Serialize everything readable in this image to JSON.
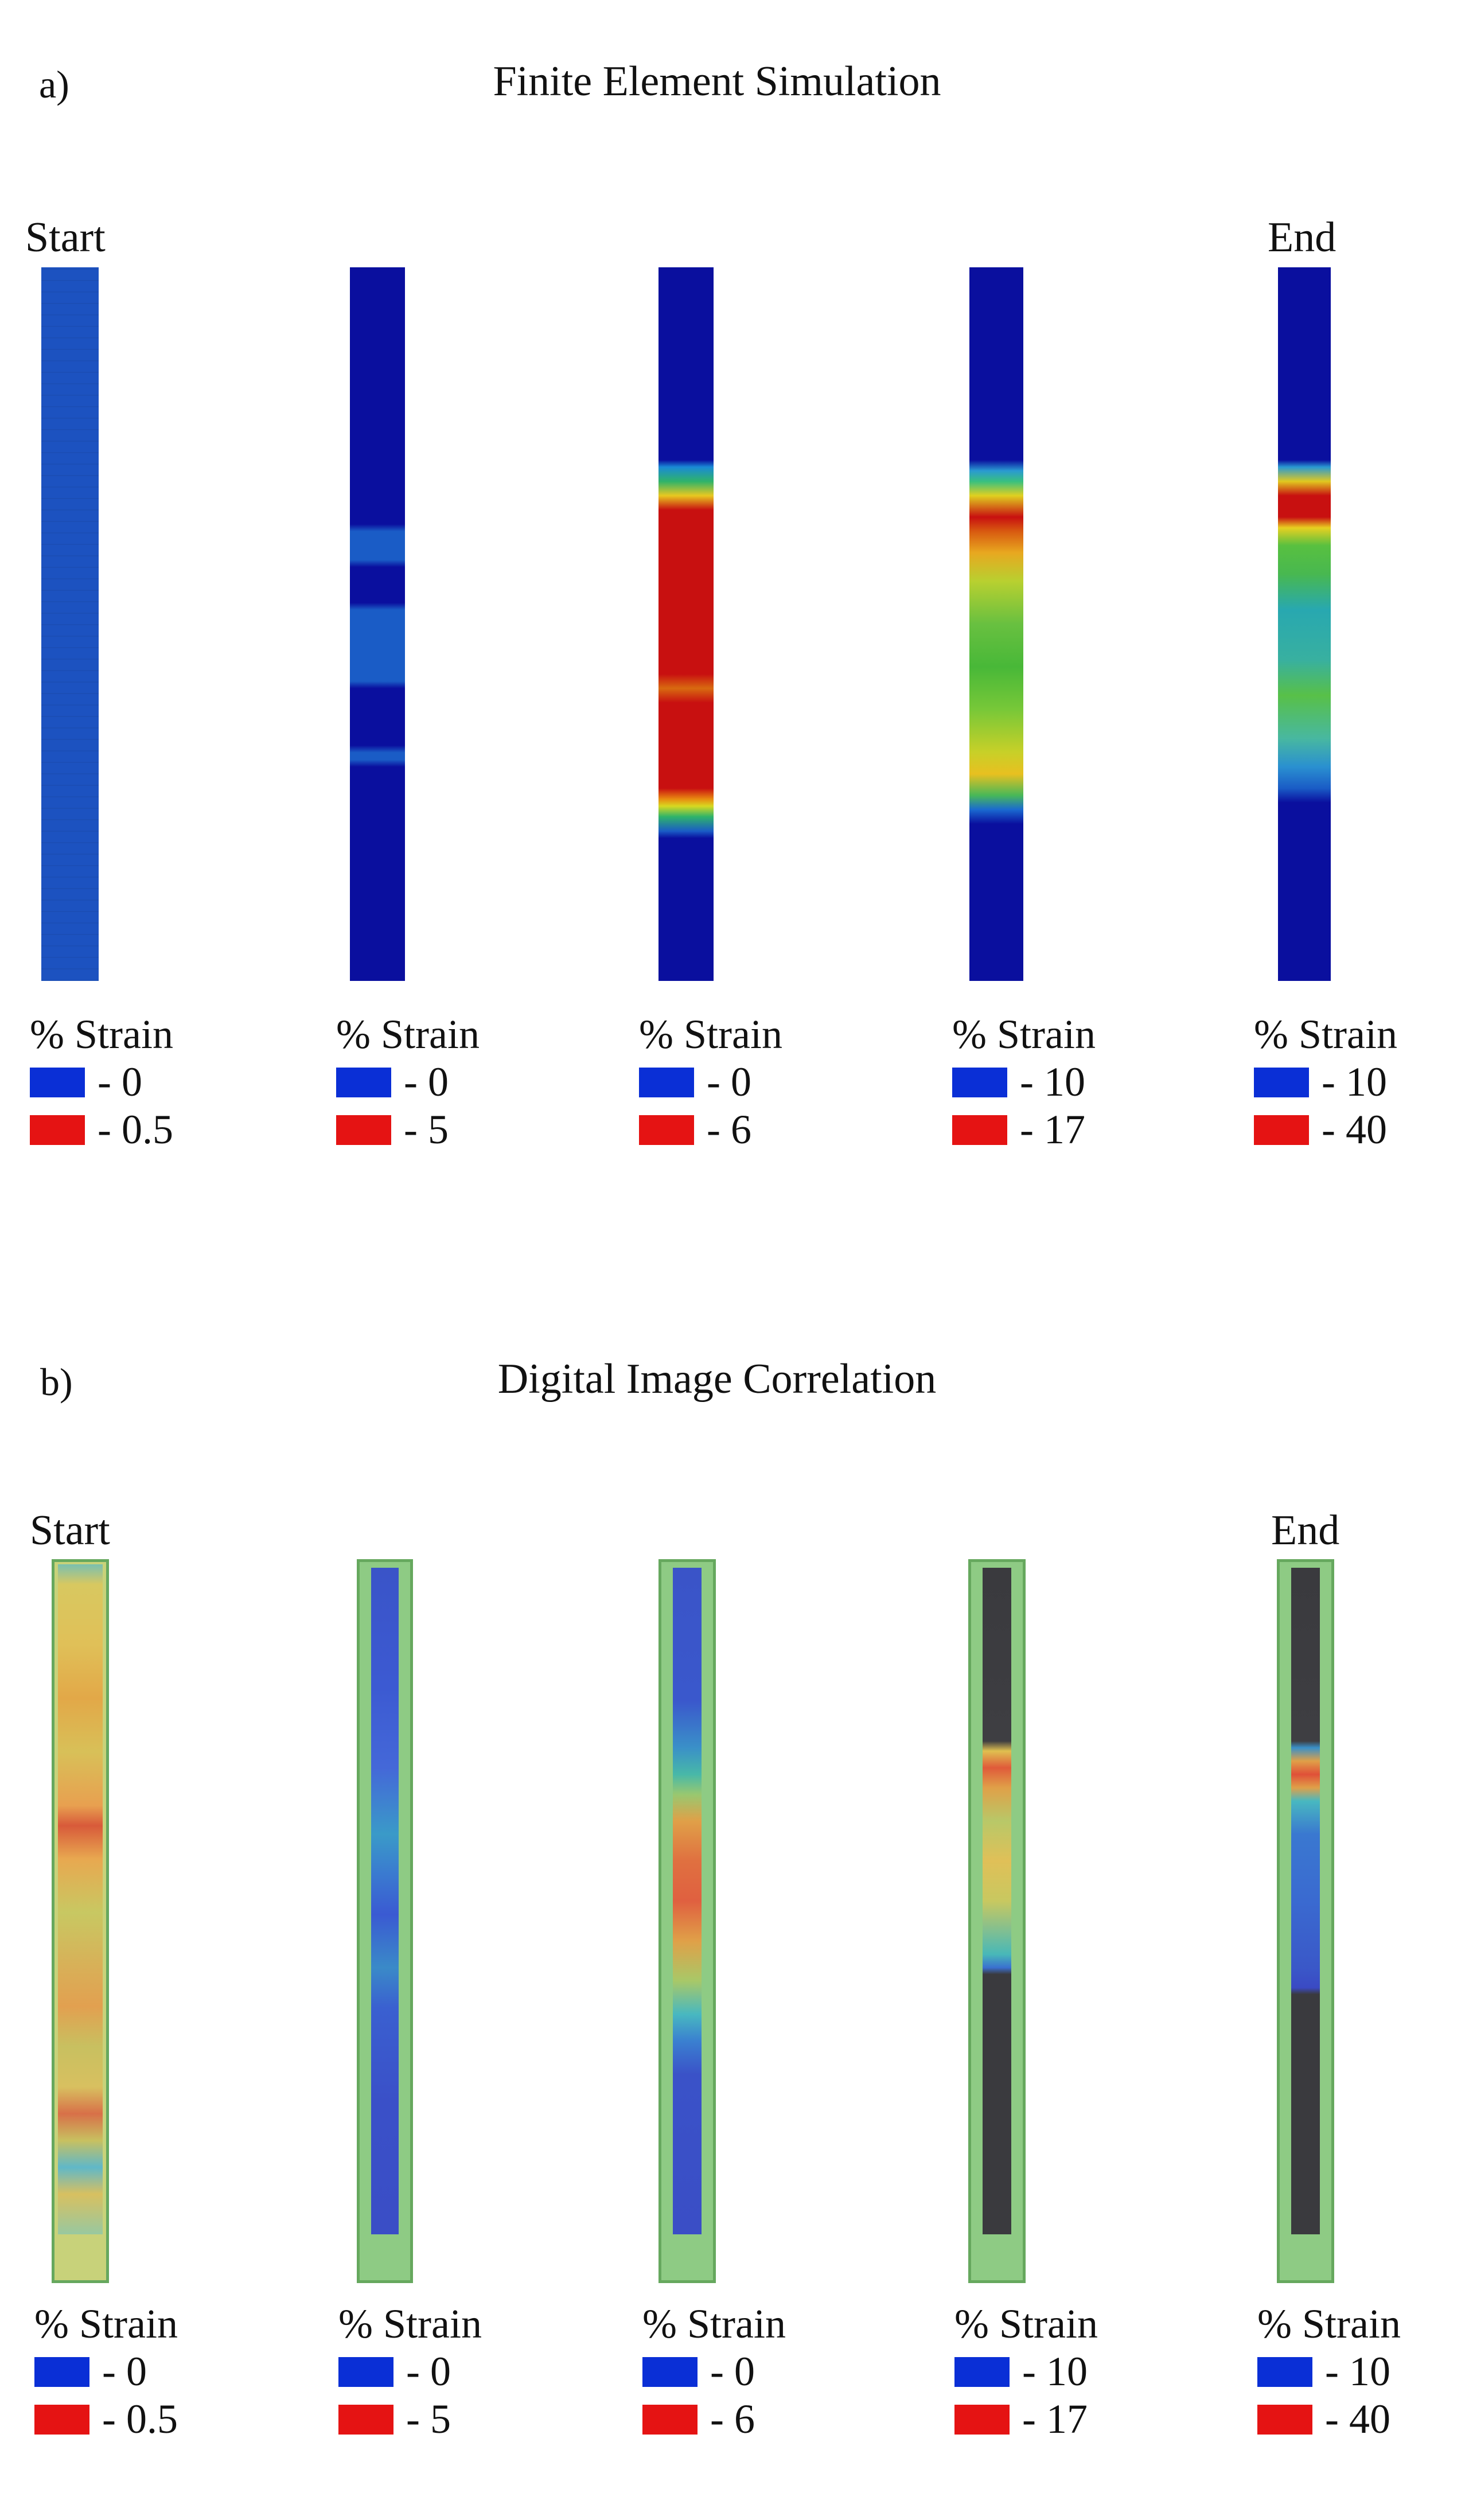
{
  "panel_a": {
    "letter": "a)",
    "title": "Finite Element Simulation",
    "start_label": "Start",
    "end_label": "End",
    "legends": [
      {
        "title": "% Strain",
        "low": "- 0",
        "high": "- 0.5"
      },
      {
        "title": "% Strain",
        "low": "- 0",
        "high": "- 5"
      },
      {
        "title": "% Strain",
        "low": "- 0",
        "high": "- 6"
      },
      {
        "title": "% Strain",
        "low": "- 10",
        "high": "- 17"
      },
      {
        "title": "% Strain",
        "low": "- 10",
        "high": "- 40"
      }
    ]
  },
  "panel_b": {
    "letter": "b)",
    "title": "Digital Image Correlation",
    "start_label": "Start",
    "end_label": "End",
    "legends": [
      {
        "title": "% Strain",
        "low": "- 0",
        "high": "- 0.5"
      },
      {
        "title": "% Strain",
        "low": "- 0",
        "high": "- 5"
      },
      {
        "title": "% Strain",
        "low": "- 0",
        "high": "- 6"
      },
      {
        "title": "% Strain",
        "low": "- 10",
        "high": "- 17"
      },
      {
        "title": "% Strain",
        "low": "- 10",
        "high": "- 40"
      }
    ]
  },
  "colors": {
    "low_swatch": "#0a2fd6",
    "high_swatch": "#e51313"
  }
}
